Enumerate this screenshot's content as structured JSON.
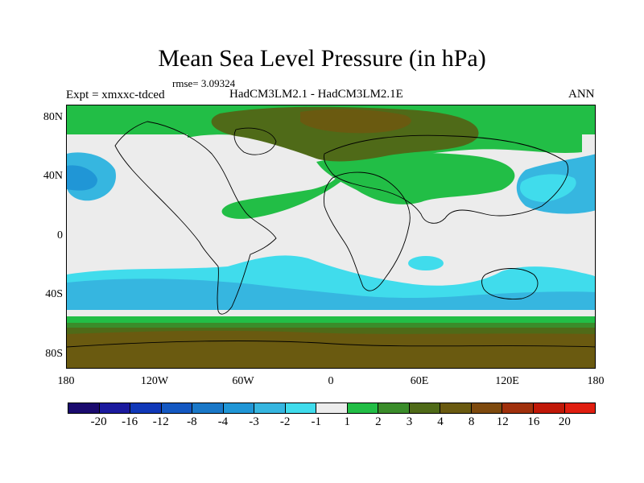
{
  "title": "Mean Sea Level Pressure (in hPa)",
  "rmse": "rmse= 3.09324",
  "expt": "Expt = xmxxc-tdced",
  "subtitle": "HadCM3LM2.1 - HadCM3LM2.1E",
  "season": "ANN",
  "y_labels": [
    "80N",
    "40N",
    "0",
    "40S",
    "80S"
  ],
  "x_labels": [
    "180",
    "120W",
    "60W",
    "0",
    "60E",
    "120E",
    "180"
  ],
  "colorbar": {
    "labels": [
      "-20",
      "-16",
      "-12",
      "-8",
      "-4",
      "-3",
      "-2",
      "-1",
      "1",
      "2",
      "3",
      "4",
      "8",
      "12",
      "16",
      "20"
    ],
    "colors": [
      "#1a0a6e",
      "#1b1a9e",
      "#1038b8",
      "#1458c2",
      "#1a78c8",
      "#2096d6",
      "#36b6e0",
      "#40dcec",
      "#ececec",
      "#22be46",
      "#3a8c2a",
      "#4f6a18",
      "#6a5a10",
      "#7e4a0e",
      "#a0300c",
      "#c01808",
      "#e01e10"
    ]
  },
  "field_colors": {
    "neutral": "#ececec",
    "light_blue": "#40dcec",
    "mid_blue": "#36b6e0",
    "blue": "#2096d6",
    "green": "#22be46",
    "dark_green": "#3a8c2a",
    "olive": "#4f6a18",
    "brown": "#6a5a10"
  }
}
